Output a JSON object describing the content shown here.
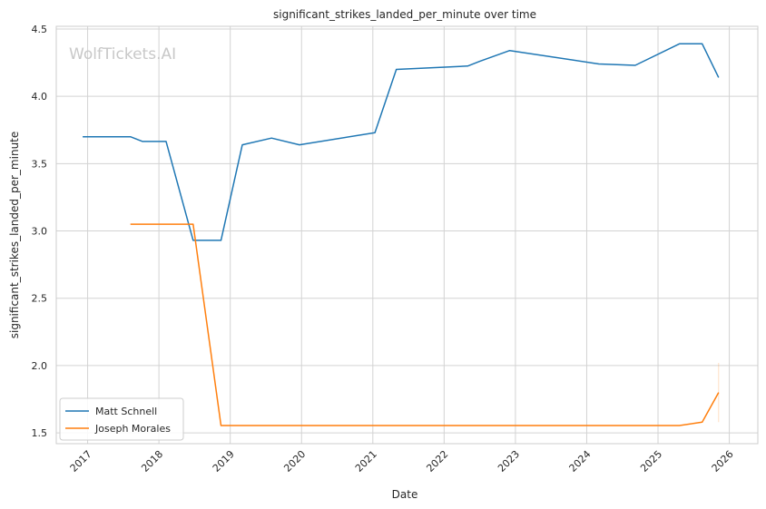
{
  "chart_data": {
    "type": "line",
    "title": "significant_strikes_landed_per_minute over time",
    "xlabel": "Date",
    "ylabel": "significant_strikes_landed_per_minute",
    "watermark": "WolfTickets.AI",
    "x_ticks": [
      "2017",
      "2018",
      "2019",
      "2020",
      "2021",
      "2022",
      "2023",
      "2024",
      "2025",
      "2026"
    ],
    "y_ticks": [
      "1.5",
      "2.0",
      "2.5",
      "3.0",
      "3.5",
      "4.0",
      "4.5"
    ],
    "xlim": [
      2016.56,
      2026.4
    ],
    "ylim": [
      1.42,
      4.52
    ],
    "grid": true,
    "legend_position": "lower-left",
    "series": [
      {
        "name": "Matt Schnell",
        "color": "#1f77b4",
        "points": [
          [
            2016.93,
            3.7
          ],
          [
            2017.6,
            3.7
          ],
          [
            2017.77,
            3.665
          ],
          [
            2018.1,
            3.665
          ],
          [
            2018.48,
            2.93
          ],
          [
            2018.87,
            2.93
          ],
          [
            2019.17,
            3.64
          ],
          [
            2019.58,
            3.69
          ],
          [
            2019.97,
            3.64
          ],
          [
            2021.03,
            3.73
          ],
          [
            2021.33,
            4.2
          ],
          [
            2022.33,
            4.225
          ],
          [
            2022.5,
            4.26
          ],
          [
            2022.92,
            4.34
          ],
          [
            2024.17,
            4.24
          ],
          [
            2024.68,
            4.23
          ],
          [
            2025.3,
            4.39
          ],
          [
            2025.62,
            4.39
          ],
          [
            2025.85,
            4.14
          ]
        ]
      },
      {
        "name": "Joseph Morales",
        "color": "#ff7f0e",
        "points": [
          [
            2017.6,
            3.05
          ],
          [
            2018.48,
            3.05
          ],
          [
            2018.87,
            1.555
          ],
          [
            2025.3,
            1.555
          ],
          [
            2025.62,
            1.58
          ],
          [
            2025.85,
            1.8
          ]
        ]
      }
    ]
  }
}
